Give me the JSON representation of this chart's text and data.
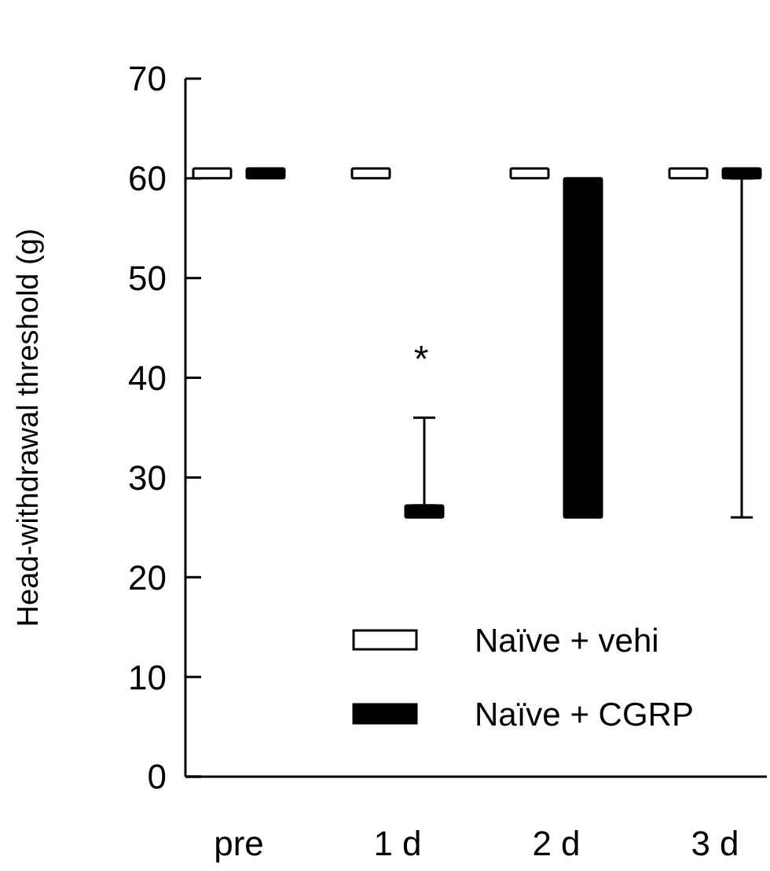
{
  "chart_data": {
    "type": "bar",
    "ylabel": "Head-withdrawal threshold (g)",
    "categories": [
      "pre",
      "1 d",
      "2 d",
      "3 d"
    ],
    "series": [
      {
        "name": "Naïve + vehi",
        "color": "#ffffff",
        "base": [
          60,
          60,
          60,
          60
        ],
        "values": [
          1,
          1,
          1,
          1
        ]
      },
      {
        "name": "Naïve + CGRP",
        "color": "#000000",
        "base": [
          60,
          26,
          26,
          60
        ],
        "values": [
          1,
          1.2,
          34,
          1
        ],
        "errors": [
          null,
          [
            27.2,
            36
          ],
          null,
          [
            26,
            60
          ]
        ]
      }
    ],
    "ylim": [
      0,
      70
    ],
    "yticks": [
      0,
      10,
      20,
      30,
      40,
      50,
      60,
      70
    ],
    "grid": false,
    "legend": "bottom right",
    "annotations": [
      "*"
    ]
  }
}
